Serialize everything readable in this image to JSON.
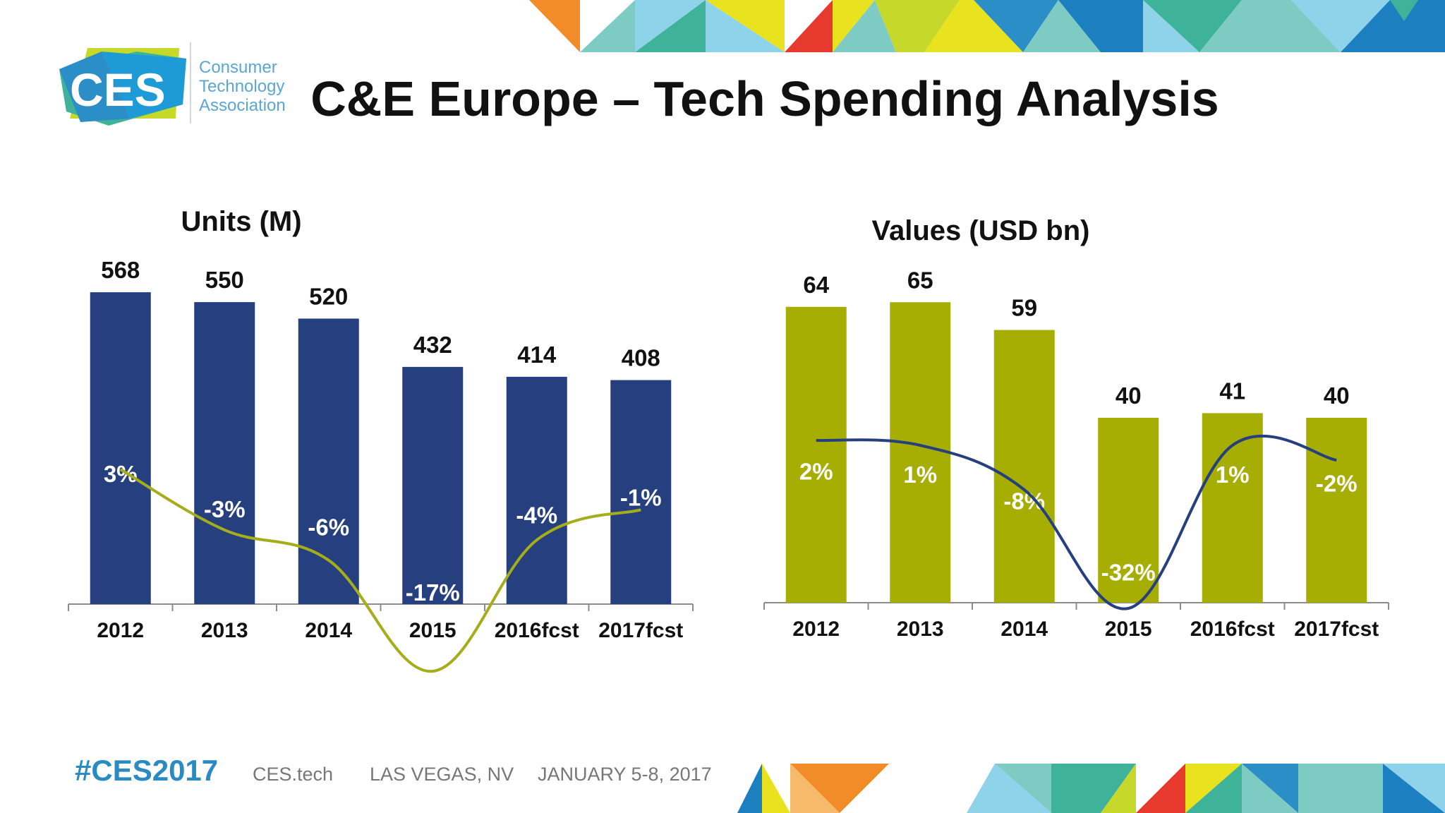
{
  "title": "C&E Europe – Tech Spending Analysis",
  "logo": {
    "mark": "CES",
    "lines": [
      "Consumer",
      "Technology",
      "Association"
    ]
  },
  "footer": {
    "hashtag": "#CES2017",
    "site": "CES.tech",
    "location": "LAS VEGAS, NV",
    "dates": "JANUARY 5-8, 2017"
  },
  "colors": {
    "units_bar": "#263f7f",
    "units_line": "#a6ad1a",
    "values_bar": "#a6ad03",
    "values_line": "#263f7f"
  },
  "chart_data": [
    {
      "type": "bar",
      "title": "Units (M)",
      "categories": [
        "2012",
        "2013",
        "2014",
        "2015",
        "2016fcst",
        "2017fcst"
      ],
      "values": [
        568,
        550,
        520,
        432,
        414,
        408
      ],
      "growth_labels": [
        "3%",
        "-3%",
        "-6%",
        "-17%",
        "-4%",
        "-1%"
      ],
      "growth_values": [
        3,
        -3,
        -6,
        -17,
        -4,
        -1
      ],
      "ylim": [
        0,
        600
      ],
      "xlabel": "",
      "ylabel": ""
    },
    {
      "type": "bar",
      "title": "Values (USD bn)",
      "categories": [
        "2012",
        "2013",
        "2014",
        "2015",
        "2016fcst",
        "2017fcst"
      ],
      "values": [
        64,
        65,
        59,
        40,
        41,
        40
      ],
      "growth_labels": [
        "2%",
        "1%",
        "-8%",
        "-32%",
        "1%",
        "-2%"
      ],
      "growth_values": [
        2,
        1,
        -8,
        -32,
        1,
        -2
      ],
      "ylim": [
        0,
        70
      ],
      "xlabel": "",
      "ylabel": ""
    }
  ]
}
